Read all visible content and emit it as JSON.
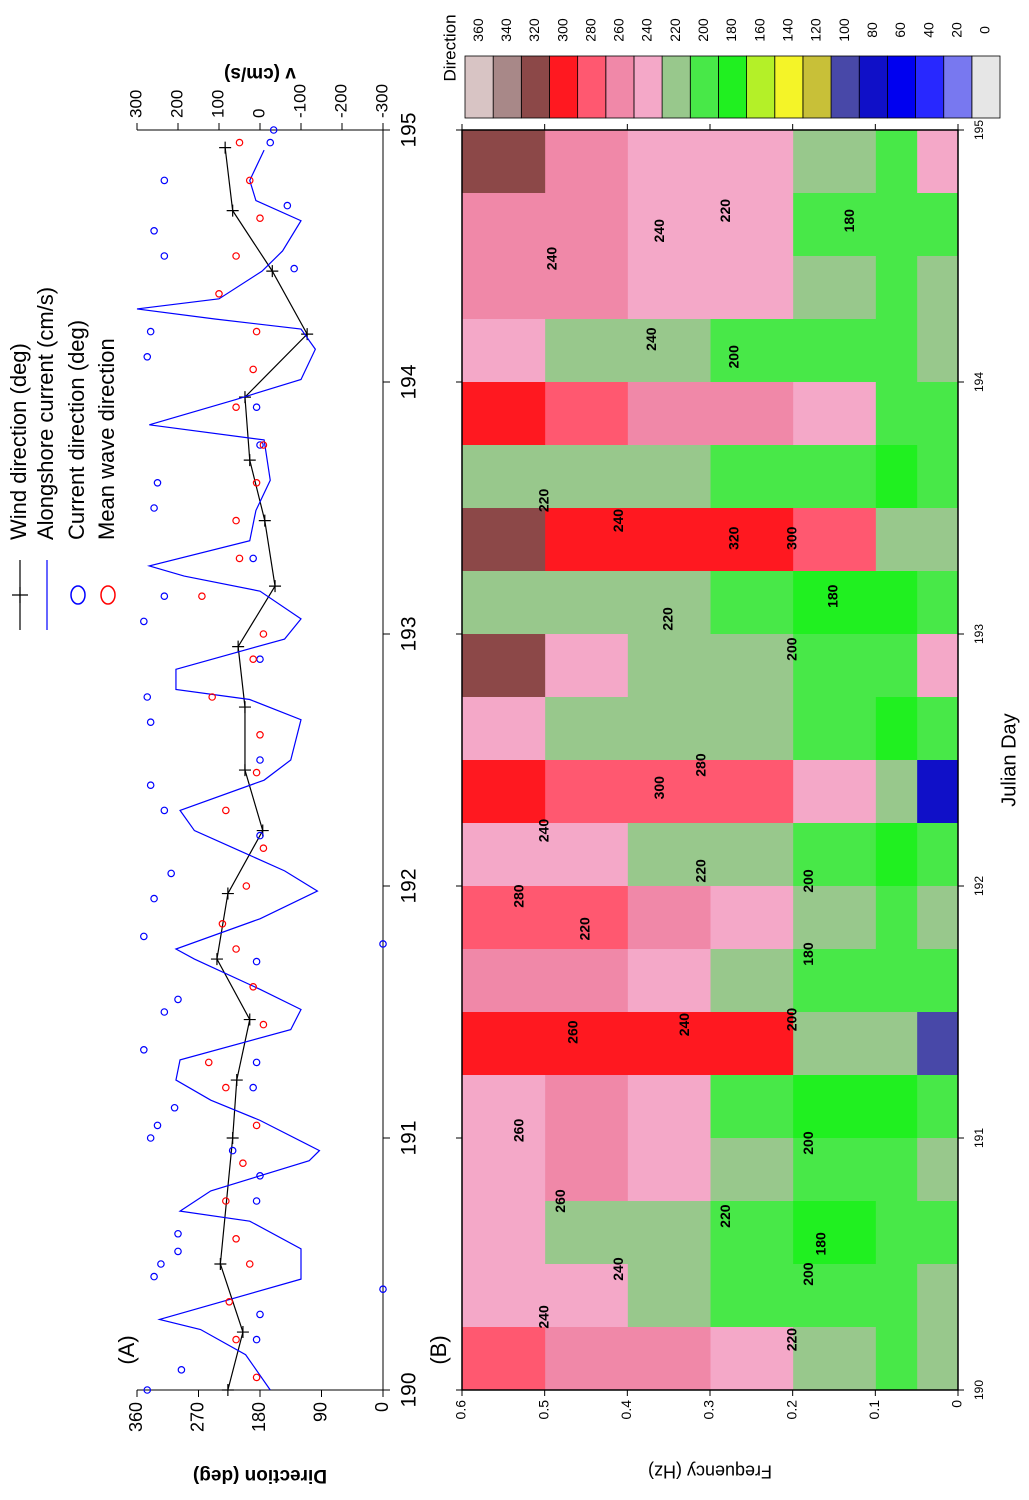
{
  "chart_data": [
    {
      "type": "timeseries",
      "label": "(A)",
      "xlim": [
        190,
        195
      ],
      "xticks": [
        190,
        191,
        192,
        193,
        194,
        195
      ],
      "ylabel": "Direction (deg)",
      "ylim": [
        0,
        360
      ],
      "yticks": [
        0,
        90,
        180,
        270,
        360
      ],
      "y2label": "v (cm/s)",
      "y2lim": [
        -300,
        300
      ],
      "y2ticks": [
        -300,
        -200,
        -100,
        0,
        100,
        200,
        300
      ],
      "series": [
        {
          "name": "Wind direction (deg)",
          "color": "#000000",
          "style": "line-plus",
          "x": [
            190.0,
            190.23,
            190.5,
            191.0,
            191.23,
            191.47,
            191.71,
            191.97,
            192.22,
            192.46,
            192.71,
            192.95,
            193.19,
            193.45,
            193.69,
            193.94,
            194.19,
            194.44,
            194.68,
            194.93
          ],
          "values": [
            227,
            205,
            238,
            220,
            214,
            195,
            243,
            227,
            176,
            202,
            202,
            212,
            158,
            173,
            195,
            202,
            111,
            162,
            220,
            231
          ]
        },
        {
          "name": "Alongshore current (cm/s)",
          "color": "#0000ff",
          "style": "line",
          "axis": "y2",
          "x": [
            190.0,
            190.14,
            190.24,
            190.28,
            190.44,
            190.56,
            190.67,
            190.71,
            190.79,
            190.91,
            190.95,
            191.07,
            191.15,
            191.23,
            191.31,
            191.43,
            191.51,
            191.59,
            191.71,
            191.75,
            191.87,
            191.98,
            192.06,
            192.14,
            192.22,
            192.3,
            192.42,
            192.5,
            192.66,
            192.74,
            192.78,
            192.86,
            192.98,
            193.06,
            193.17,
            193.23,
            193.27,
            193.37,
            193.49,
            193.61,
            193.77,
            193.83,
            193.93,
            194.01,
            194.13,
            194.21,
            194.25,
            194.29,
            194.33,
            194.44,
            194.52,
            194.64,
            194.72,
            194.8,
            194.92
          ],
          "values": [
            -25,
            35,
            145,
            245,
            -100,
            -100,
            25,
            195,
            120,
            -120,
            -145,
            0,
            120,
            205,
            195,
            -75,
            -100,
            0,
            160,
            205,
            0,
            -140,
            -60,
            50,
            160,
            195,
            -10,
            -75,
            -100,
            25,
            205,
            205,
            -60,
            -100,
            0,
            185,
            270,
            25,
            10,
            -25,
            -10,
            270,
            60,
            -100,
            -135,
            -100,
            110,
            300,
            100,
            -5,
            -55,
            -100,
            10,
            25,
            -10
          ]
        },
        {
          "name": "Current direction (deg)",
          "color": "#0000ff",
          "style": "circle",
          "x": [
            190.0,
            190.08,
            190.2,
            190.3,
            190.4,
            190.45,
            190.5,
            190.55,
            190.62,
            190.75,
            190.85,
            190.95,
            191.0,
            191.05,
            191.12,
            191.2,
            191.3,
            191.35,
            191.5,
            191.55,
            191.7,
            191.77,
            191.8,
            191.95,
            192.05,
            192.2,
            192.3,
            192.4,
            192.5,
            192.65,
            192.75,
            192.9,
            193.05,
            193.15,
            193.3,
            193.5,
            193.6,
            193.75,
            193.9,
            194.1,
            194.2,
            194.45,
            194.5,
            194.6,
            194.7,
            194.8,
            194.95,
            195.0
          ],
          "values": [
            345,
            295,
            185,
            180,
            0,
            335,
            325,
            300,
            300,
            185,
            180,
            220,
            340,
            330,
            305,
            190,
            185,
            350,
            320,
            300,
            185,
            0,
            350,
            335,
            310,
            180,
            320,
            340,
            180,
            340,
            345,
            180,
            350,
            320,
            190,
            335,
            330,
            180,
            185,
            345,
            340,
            130,
            320,
            335,
            140,
            320,
            165,
            160
          ]
        },
        {
          "name": "Mean wave direction",
          "color": "#ff0000",
          "style": "circle",
          "x": [
            190.05,
            190.2,
            190.35,
            190.5,
            190.6,
            190.75,
            190.9,
            191.05,
            191.2,
            191.3,
            191.45,
            191.6,
            191.75,
            191.85,
            192.0,
            192.15,
            192.3,
            192.45,
            192.6,
            192.75,
            192.9,
            193.0,
            193.15,
            193.3,
            193.45,
            193.6,
            193.75,
            193.9,
            194.05,
            194.2,
            194.35,
            194.5,
            194.65,
            194.8,
            194.95
          ],
          "values": [
            185,
            215,
            225,
            195,
            215,
            230,
            205,
            185,
            230,
            255,
            175,
            190,
            215,
            235,
            200,
            175,
            230,
            185,
            180,
            250,
            190,
            175,
            265,
            210,
            215,
            185,
            175,
            215,
            190,
            185,
            240,
            215,
            180,
            195,
            210
          ]
        }
      ]
    },
    {
      "type": "heatmap",
      "label": "(B)",
      "xlabel": "Julian Day",
      "ylabel": "Frequency (Hz)",
      "xlim": [
        190,
        195
      ],
      "xticks": [
        190,
        191,
        192,
        193,
        194,
        195
      ],
      "ylim": [
        0,
        0.6
      ],
      "yticks": [
        0,
        0.1,
        0.2,
        0.3,
        0.4,
        0.5,
        0.6
      ],
      "x_edges": [
        190,
        190.25,
        190.5,
        190.75,
        191,
        191.25,
        191.5,
        191.75,
        192,
        192.25,
        192.5,
        192.75,
        193,
        193.25,
        193.5,
        193.75,
        194,
        194.25,
        194.5,
        194.75,
        195
      ],
      "y_edges": [
        0,
        0.05,
        0.1,
        0.2,
        0.3,
        0.4,
        0.5,
        0.6
      ],
      "z": [
        [
          230,
          210,
          220,
          250,
          260,
          270,
          290
        ],
        [
          220,
          200,
          200,
          210,
          230,
          240,
          250
        ],
        [
          210,
          200,
          190,
          210,
          220,
          230,
          240
        ],
        [
          220,
          200,
          200,
          220,
          250,
          260,
          250
        ],
        [
          200,
          190,
          190,
          210,
          250,
          260,
          250
        ],
        [
          100,
          230,
          230,
          300,
          300,
          300,
          300
        ],
        [
          210,
          200,
          200,
          220,
          240,
          260,
          260
        ],
        [
          220,
          210,
          220,
          250,
          270,
          290,
          290
        ],
        [
          200,
          190,
          200,
          220,
          230,
          240,
          250
        ],
        [
          80,
          230,
          250,
          290,
          280,
          280,
          310
        ],
        [
          210,
          190,
          200,
          220,
          230,
          230,
          250
        ],
        [
          240,
          200,
          200,
          230,
          230,
          240,
          320
        ],
        [
          200,
          190,
          190,
          210,
          220,
          220,
          230
        ],
        [
          230,
          220,
          280,
          300,
          300,
          300,
          330
        ],
        [
          210,
          190,
          200,
          210,
          220,
          220,
          230
        ],
        [
          200,
          210,
          250,
          270,
          270,
          290,
          300
        ],
        [
          230,
          210,
          200,
          210,
          220,
          230,
          250
        ],
        [
          220,
          200,
          220,
          250,
          250,
          260,
          260
        ],
        [
          210,
          200,
          200,
          240,
          250,
          260,
          260
        ],
        [
          240,
          200,
          220,
          250,
          250,
          270,
          320
        ]
      ],
      "colorbar": {
        "title": "Direction",
        "levels": [
          0,
          20,
          40,
          60,
          80,
          100,
          120,
          140,
          160,
          180,
          200,
          220,
          240,
          260,
          280,
          300,
          320,
          340,
          360
        ],
        "colors": [
          "#e6e6e6",
          "#7878f0",
          "#2828ff",
          "#0000f0",
          "#1010c8",
          "#4848a8",
          "#c8c038",
          "#f4f428",
          "#b4f028",
          "#20f020",
          "#48e848",
          "#98c88c",
          "#f4a8c8",
          "#f088a8",
          "#ff5870",
          "#ff1820",
          "#8c4848",
          "#a88888",
          "#d8c4c4"
        ]
      },
      "annotations": [
        {
          "text": "240",
          "x": 190.29,
          "y": 0.5
        },
        {
          "text": "220",
          "x": 190.2,
          "y": 0.2
        },
        {
          "text": "200",
          "x": 190.46,
          "y": 0.18
        },
        {
          "text": "180",
          "x": 190.58,
          "y": 0.165
        },
        {
          "text": "240",
          "x": 190.48,
          "y": 0.41
        },
        {
          "text": "220",
          "x": 190.69,
          "y": 0.28
        },
        {
          "text": "260",
          "x": 190.75,
          "y": 0.48
        },
        {
          "text": "200",
          "x": 190.98,
          "y": 0.18
        },
        {
          "text": "260",
          "x": 191.03,
          "y": 0.53
        },
        {
          "text": "260",
          "x": 191.42,
          "y": 0.465
        },
        {
          "text": "240",
          "x": 191.45,
          "y": 0.33
        },
        {
          "text": "200",
          "x": 191.47,
          "y": 0.2
        },
        {
          "text": "180",
          "x": 191.73,
          "y": 0.18
        },
        {
          "text": "220",
          "x": 191.83,
          "y": 0.45
        },
        {
          "text": "280",
          "x": 191.96,
          "y": 0.53
        },
        {
          "text": "200",
          "x": 192.02,
          "y": 0.18
        },
        {
          "text": "220",
          "x": 192.06,
          "y": 0.31
        },
        {
          "text": "240",
          "x": 192.22,
          "y": 0.5
        },
        {
          "text": "300",
          "x": 192.39,
          "y": 0.36
        },
        {
          "text": "280",
          "x": 192.48,
          "y": 0.31
        },
        {
          "text": "200",
          "x": 192.94,
          "y": 0.2
        },
        {
          "text": "220",
          "x": 193.06,
          "y": 0.35
        },
        {
          "text": "180",
          "x": 193.15,
          "y": 0.15
        },
        {
          "text": "320",
          "x": 193.38,
          "y": 0.27
        },
        {
          "text": "300",
          "x": 193.38,
          "y": 0.2
        },
        {
          "text": "240",
          "x": 193.45,
          "y": 0.41
        },
        {
          "text": "220",
          "x": 193.53,
          "y": 0.5
        },
        {
          "text": "240",
          "x": 194.17,
          "y": 0.37
        },
        {
          "text": "200",
          "x": 194.1,
          "y": 0.27
        },
        {
          "text": "220",
          "x": 194.68,
          "y": 0.28
        },
        {
          "text": "240",
          "x": 194.6,
          "y": 0.36
        },
        {
          "text": "180",
          "x": 194.64,
          "y": 0.13
        },
        {
          "text": "240",
          "x": 194.49,
          "y": 0.49
        }
      ]
    }
  ]
}
